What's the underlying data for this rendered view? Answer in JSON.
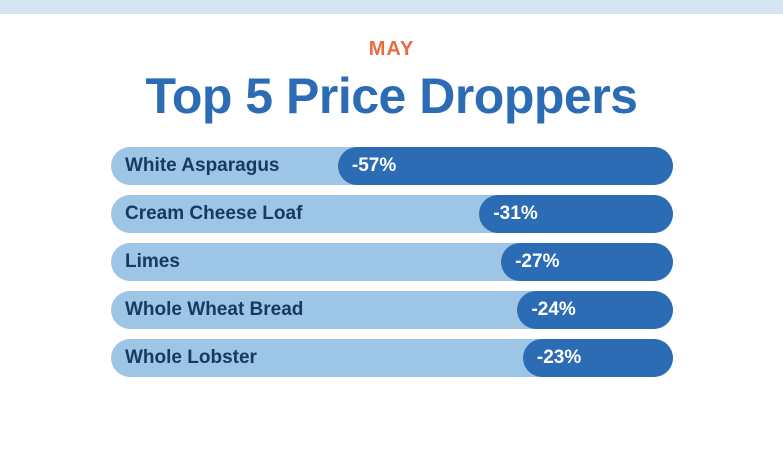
{
  "header": {
    "month": "MAY",
    "title": "Top 5 Price Droppers"
  },
  "colors": {
    "top_band": "#d6e3f1",
    "month_text": "#ea6b3d",
    "title_text": "#2b6cb5",
    "track": "#9cc5e6",
    "fill": "#2b6cb5",
    "label_text": "#163a63",
    "value_text": "#ffffff"
  },
  "chart_data": {
    "type": "bar",
    "orientation": "horizontal",
    "title": "Top 5 Price Droppers",
    "subtitle": "MAY",
    "categories": [
      "White Asparagus",
      "Cream Cheese Loaf",
      "Limes",
      "Whole Wheat Bread",
      "Whole Lobster"
    ],
    "values": [
      -57,
      -31,
      -27,
      -24,
      -23
    ],
    "value_labels": [
      "-57%",
      "-31%",
      "-27%",
      "-24%",
      "-23%"
    ],
    "unit": "%",
    "xlim": [
      -100,
      0
    ],
    "grid": false,
    "legend": "none"
  }
}
